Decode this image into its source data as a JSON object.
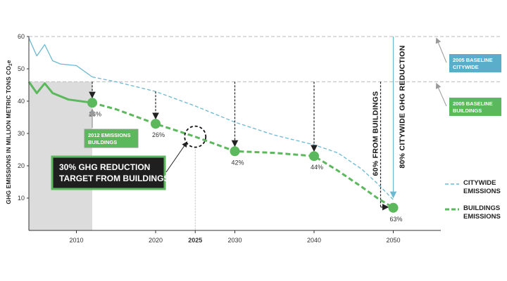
{
  "chart_data": {
    "type": "line",
    "ylabel": "GHG EMISSIONS IN MILLION METRIC TONS CO",
    "ylabel_sub": "2",
    "ylabel_suffix": "e",
    "ylim": [
      0,
      60
    ],
    "xlim": [
      2004,
      2056
    ],
    "y_ticks": [
      "10",
      "20",
      "30",
      "40",
      "50",
      "60"
    ],
    "x_ticks": [
      "2010",
      "2020",
      "2025",
      "2030",
      "2040",
      "2050"
    ],
    "x_tick_bold": "2025",
    "grid": false,
    "legend_position": "right",
    "series": [
      {
        "name": "CITYWIDE EMISSIONS",
        "legend_line1": "CITYWIDE",
        "legend_line2": "EMISSIONS",
        "color": "#6bb8d1",
        "style": "solid-then-dashed",
        "x": [
          2004,
          2005,
          2006,
          2007,
          2008,
          2010,
          2012,
          2015,
          2020,
          2025,
          2030,
          2035,
          2040,
          2043,
          2046,
          2048,
          2050
        ],
        "y": [
          59.5,
          54,
          57.5,
          52.5,
          51.5,
          51,
          47.5,
          46,
          43,
          38.5,
          33.5,
          29.5,
          26.5,
          24,
          19,
          14.5,
          9.5
        ]
      },
      {
        "name": "BUILDINGS EMISSIONS",
        "legend_line1": "BUILDINGS",
        "legend_line2": "EMISSIONS",
        "color": "#5cb85c",
        "style": "solid-then-dashed",
        "x": [
          2004,
          2005,
          2006,
          2007,
          2009,
          2012,
          2015,
          2020,
          2025,
          2030,
          2035,
          2040,
          2043,
          2046,
          2048,
          2050
        ],
        "y": [
          46,
          42.5,
          45.5,
          42.5,
          40.5,
          39.5,
          37.5,
          33,
          29,
          24.5,
          24,
          23,
          18.5,
          13.5,
          10,
          7
        ]
      }
    ],
    "milestones": [
      {
        "x": 2012,
        "y": 39.5,
        "label": "16%",
        "arrow_from": 46
      },
      {
        "x": 2020,
        "y": 33,
        "label": "26%",
        "arrow_from": 43
      },
      {
        "x": 2030,
        "y": 24.5,
        "label": "42%",
        "arrow_from": 46
      },
      {
        "x": 2040,
        "y": 23,
        "label": "44%",
        "arrow_from": 46
      },
      {
        "x": 2050,
        "y": 7,
        "label": "63%",
        "arrow_from": null
      }
    ],
    "baselines": [
      {
        "value": 60,
        "line1": "2005 BASELINE",
        "line2": "CITYWIDE",
        "color": "#5aaec9"
      },
      {
        "value": 46,
        "line1": "2005 BASELINE",
        "line2": "BUILDINGS",
        "color": "#5cb85c"
      }
    ],
    "annotations": {
      "emissions_2012_line1": "2012 EMISSIONS",
      "emissions_2012_line2": "BUILDINGS",
      "target_line1": "30% GHG REDUCTION",
      "target_line2": "TARGET FROM BUILDINGS",
      "vertical_buildings": "60% FROM BUILDINGS",
      "vertical_citywide": "80% CITYWIDE GHG REDUCTION"
    },
    "shaded_range": [
      2004,
      2012
    ]
  }
}
